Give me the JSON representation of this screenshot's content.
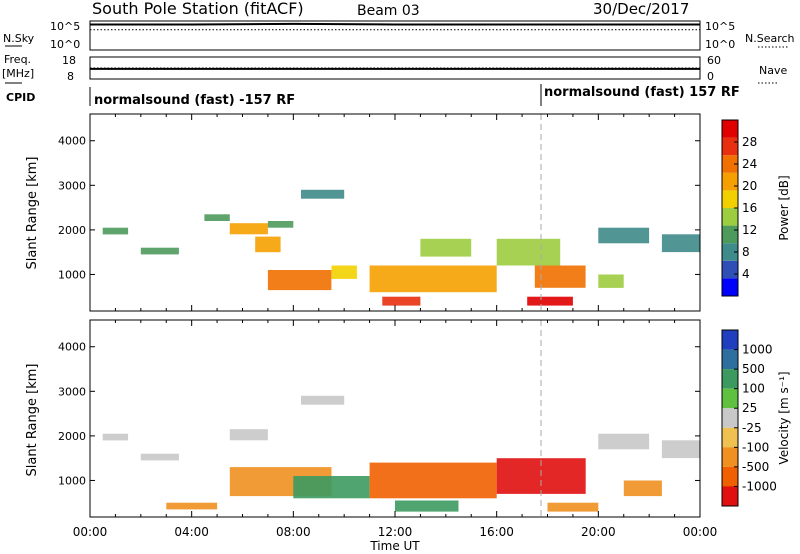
{
  "header": {
    "station": "South Pole Station (fitACF)",
    "beam": "Beam 03",
    "date": "30/Dec/2017"
  },
  "left_labels": {
    "nsky": "N.Sky",
    "freq_top": "Freq.",
    "freq_unit": "[MHz]",
    "cpid": "CPID",
    "nsky_hi": "10^5",
    "nsky_lo": "10^0",
    "freq_hi": "18",
    "freq_lo": "8"
  },
  "right_labels": {
    "nsearch": "N.Search",
    "nave": "Nave",
    "ns_hi": "10^5",
    "ns_lo": "10^0",
    "nave_hi": "60",
    "nave_lo": "0"
  },
  "cpid_text": {
    "seg1": "normalsound (fast) -157 RF",
    "seg2": "normalsound (fast) 157 RF"
  },
  "xaxis": {
    "label": "Time UT",
    "ticks": [
      "00:00",
      "04:00",
      "08:00",
      "12:00",
      "16:00",
      "20:00",
      "00:00"
    ]
  },
  "power_panel": {
    "ylabel": "Slant Range [km]",
    "yticks": [
      "1000",
      "2000",
      "3000",
      "4000"
    ],
    "cbar_label": "Power [dB]",
    "cbar_ticks": [
      "4",
      "8",
      "12",
      "16",
      "20",
      "24",
      "28"
    ],
    "cbar_colors": [
      "#0000ff",
      "#2f4fb7",
      "#3f8a8a",
      "#4c9a5c",
      "#9ccc3f",
      "#f2d000",
      "#f5a000",
      "#f07000",
      "#e83010",
      "#e00000"
    ]
  },
  "velocity_panel": {
    "ylabel": "Slant Range [km]",
    "yticks": [
      "1000",
      "2000",
      "3000",
      "4000"
    ],
    "cbar_label": "Velocity [m s⁻¹]",
    "cbar_ticks": [
      "1000",
      "500",
      "100",
      "25",
      "-25",
      "-100",
      "-500",
      "-1000"
    ],
    "cbar_colors": [
      "#1f3fbf",
      "#2f6fa0",
      "#3c9a60",
      "#60c040",
      "#c8c8c8",
      "#f0c050",
      "#f09020",
      "#f06000",
      "#e01010"
    ]
  },
  "chart_data": [
    {
      "type": "line",
      "title": "N.Sky / N.Search",
      "x": [
        "00:00",
        "04:00",
        "08:00",
        "12:00",
        "16:00",
        "20:00",
        "00:00"
      ],
      "series": [
        {
          "name": "N.Sky",
          "values": [
            4.4,
            4.4,
            4.5,
            4.4,
            4.4,
            4.4,
            4.4
          ]
        },
        {
          "name": "N.Search",
          "values": [
            3.5,
            3.5,
            3.5,
            3.5,
            3.5,
            3.5,
            3.5
          ]
        }
      ],
      "yscale": "log",
      "ylim": [
        "1",
        "1e5"
      ]
    },
    {
      "type": "line",
      "title": "Freq. / Nave",
      "x": [
        "00:00",
        "04:00",
        "08:00",
        "12:00",
        "16:00",
        "20:00",
        "00:00"
      ],
      "series": [
        {
          "name": "Freq. [MHz]",
          "values": [
            12.6,
            12.6,
            12.6,
            12.6,
            12.6,
            12.6,
            12.6
          ]
        },
        {
          "name": "Nave",
          "values": [
            30,
            30,
            30,
            30,
            30,
            30,
            30
          ]
        }
      ],
      "ylim_freq": [
        8,
        18
      ],
      "ylim_nave": [
        0,
        60
      ]
    },
    {
      "type": "heatmap",
      "title": "Power [dB]",
      "xlabel": "Time UT",
      "ylabel": "Slant Range [km]",
      "xlim": [
        "00:00",
        "24:00"
      ],
      "ylim": [
        180,
        4600
      ],
      "clim": [
        0,
        30
      ],
      "cells": [
        {
          "t": [
            0.5,
            1.5
          ],
          "r": [
            1900,
            2050
          ],
          "v": 10
        },
        {
          "t": [
            2.0,
            3.5
          ],
          "r": [
            1450,
            1600
          ],
          "v": 10
        },
        {
          "t": [
            4.5,
            5.5
          ],
          "r": [
            2200,
            2350
          ],
          "v": 10
        },
        {
          "t": [
            5.5,
            7.0
          ],
          "r": [
            1900,
            2150
          ],
          "v": 20
        },
        {
          "t": [
            6.5,
            7.5
          ],
          "r": [
            1500,
            1850
          ],
          "v": 18
        },
        {
          "t": [
            7.0,
            8.0
          ],
          "r": [
            2050,
            2200
          ],
          "v": 9
        },
        {
          "t": [
            8.3,
            10.0
          ],
          "r": [
            2700,
            2900
          ],
          "v": 6
        },
        {
          "t": [
            7.0,
            9.5
          ],
          "r": [
            650,
            1100
          ],
          "v": 22
        },
        {
          "t": [
            9.5,
            10.5
          ],
          "r": [
            900,
            1200
          ],
          "v": 16
        },
        {
          "t": [
            11.0,
            16.0
          ],
          "r": [
            600,
            1200
          ],
          "v": 20
        },
        {
          "t": [
            13.0,
            15.0
          ],
          "r": [
            1400,
            1800
          ],
          "v": 12
        },
        {
          "t": [
            11.5,
            13.0
          ],
          "r": [
            300,
            500
          ],
          "v": 26
        },
        {
          "t": [
            16.0,
            18.5
          ],
          "r": [
            1200,
            1800
          ],
          "v": 12
        },
        {
          "t": [
            17.5,
            19.5
          ],
          "r": [
            700,
            1200
          ],
          "v": 22
        },
        {
          "t": [
            17.2,
            19.0
          ],
          "r": [
            300,
            500
          ],
          "v": 28
        },
        {
          "t": [
            20.0,
            22.0
          ],
          "r": [
            1700,
            2050
          ],
          "v": 6
        },
        {
          "t": [
            22.5,
            24.0
          ],
          "r": [
            1500,
            1900
          ],
          "v": 8
        },
        {
          "t": [
            20.0,
            21.0
          ],
          "r": [
            700,
            1000
          ],
          "v": 12
        }
      ]
    },
    {
      "type": "heatmap",
      "title": "Velocity [m s⁻¹]",
      "xlabel": "Time UT",
      "ylabel": "Slant Range [km]",
      "xlim": [
        "00:00",
        "24:00"
      ],
      "ylim": [
        180,
        4600
      ],
      "clim": [
        -1000,
        1000
      ],
      "cells": [
        {
          "t": [
            0.5,
            1.5
          ],
          "r": [
            1900,
            2050
          ],
          "v": 0
        },
        {
          "t": [
            2.0,
            3.5
          ],
          "r": [
            1450,
            1600
          ],
          "v": 0
        },
        {
          "t": [
            5.5,
            7.0
          ],
          "r": [
            1900,
            2150
          ],
          "v": 0
        },
        {
          "t": [
            8.3,
            10.0
          ],
          "r": [
            2700,
            2900
          ],
          "v": 0
        },
        {
          "t": [
            5.5,
            9.5
          ],
          "r": [
            650,
            1300
          ],
          "v": -200
        },
        {
          "t": [
            3.0,
            5.0
          ],
          "r": [
            350,
            500
          ],
          "v": -300
        },
        {
          "t": [
            8.0,
            11.0
          ],
          "r": [
            600,
            1100
          ],
          "v": 100
        },
        {
          "t": [
            11.0,
            16.0
          ],
          "r": [
            600,
            1400
          ],
          "v": -600
        },
        {
          "t": [
            12.0,
            14.5
          ],
          "r": [
            300,
            550
          ],
          "v": 300
        },
        {
          "t": [
            16.0,
            19.5
          ],
          "r": [
            700,
            1500
          ],
          "v": -900
        },
        {
          "t": [
            18.0,
            20.0
          ],
          "r": [
            300,
            500
          ],
          "v": -300
        },
        {
          "t": [
            20.0,
            22.0
          ],
          "r": [
            1700,
            2050
          ],
          "v": 0
        },
        {
          "t": [
            22.5,
            24.0
          ],
          "r": [
            1500,
            1900
          ],
          "v": 0
        },
        {
          "t": [
            21.0,
            22.5
          ],
          "r": [
            650,
            1000
          ],
          "v": -100
        }
      ]
    }
  ]
}
